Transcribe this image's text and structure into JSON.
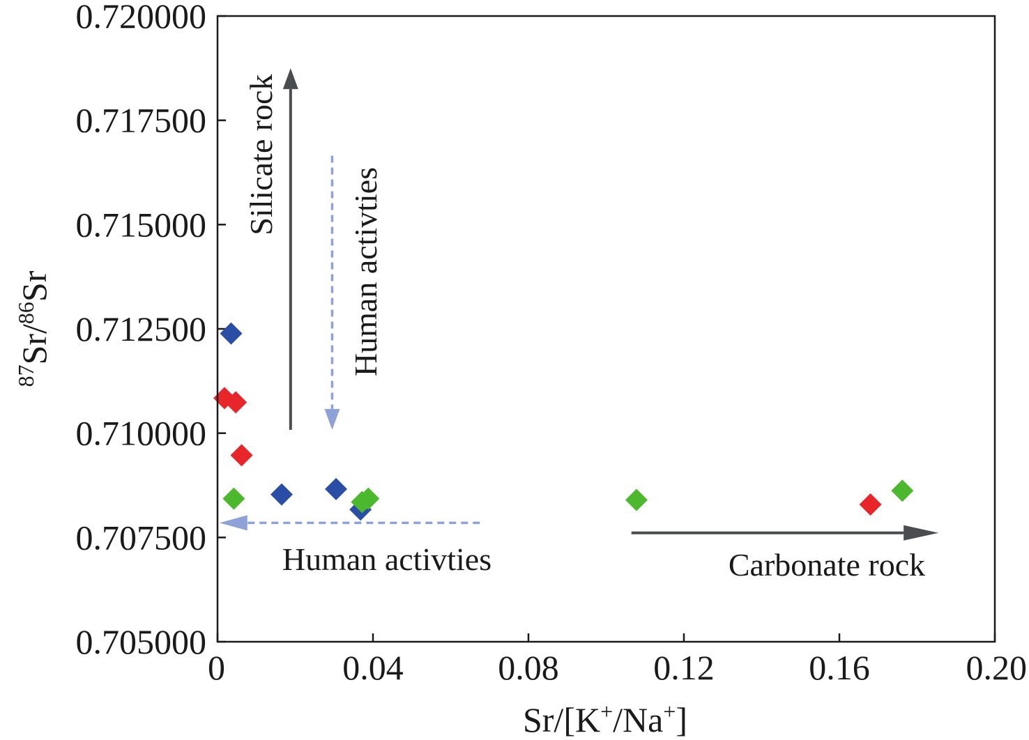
{
  "chart_data": {
    "type": "scatter",
    "title": "",
    "xlabel": {
      "prefix": "Sr/[K",
      "sup1": "+",
      "mid": "/Na",
      "sup2": "+",
      "suffix": "]"
    },
    "ylabel": {
      "sup_a": "87",
      "base_a": "Sr/",
      "sup_b": "86",
      "base_b": "Sr"
    },
    "xlim": [
      0,
      0.2
    ],
    "ylim": [
      0.705,
      0.72
    ],
    "xticks": [
      0,
      0.04,
      0.08,
      0.12,
      0.16,
      0.2
    ],
    "xtick_labels": [
      "0",
      "0.04",
      "0.08",
      "0.12",
      "0.16",
      "0.20"
    ],
    "yticks": [
      0.705,
      0.7075,
      0.71,
      0.7125,
      0.715,
      0.7175,
      0.72
    ],
    "ytick_labels": [
      "0.705000",
      "0.707500",
      "0.710000",
      "0.712500",
      "0.715000",
      "0.717500",
      "0.720000"
    ],
    "grid": false,
    "marker": "diamond",
    "series": [
      {
        "color": "#2a4ea6",
        "points": [
          [
            0.0035,
            0.71239
          ],
          [
            0.0165,
            0.70853
          ],
          [
            0.0305,
            0.70866
          ],
          [
            0.0368,
            0.70817
          ]
        ]
      },
      {
        "color": "#e8262a",
        "points": [
          [
            0.0018,
            0.71084
          ],
          [
            0.0047,
            0.71074
          ],
          [
            0.0062,
            0.70947
          ],
          [
            0.168,
            0.70829
          ]
        ]
      },
      {
        "color": "#4cb82e",
        "points": [
          [
            0.0042,
            0.70843
          ],
          [
            0.0372,
            0.70835
          ],
          [
            0.0388,
            0.70843
          ],
          [
            0.1078,
            0.7084
          ],
          [
            0.1762,
            0.70862
          ]
        ]
      }
    ],
    "annotations": [
      {
        "text": "Silicate rock",
        "arrow_color": "#4a4c50",
        "dashed": false,
        "direction": "up",
        "x": 0.0188,
        "y_start": 0.71008,
        "y_end": 0.71875
      },
      {
        "text": "Human activties",
        "arrow_color": "#8ea2d8",
        "dashed": true,
        "direction": "down",
        "x": 0.0295,
        "y_start": 0.71665,
        "y_end": 0.71008
      },
      {
        "text": "Human activties",
        "arrow_color": "#8ea2d8",
        "dashed": true,
        "direction": "left",
        "y": 0.70785,
        "x_start": 0.0675,
        "x_end": 0.0005
      },
      {
        "text": "Carbonate rock",
        "arrow_color": "#4a4c50",
        "dashed": false,
        "direction": "right",
        "y": 0.70761,
        "x_start": 0.1065,
        "x_end": 0.1855
      }
    ]
  }
}
